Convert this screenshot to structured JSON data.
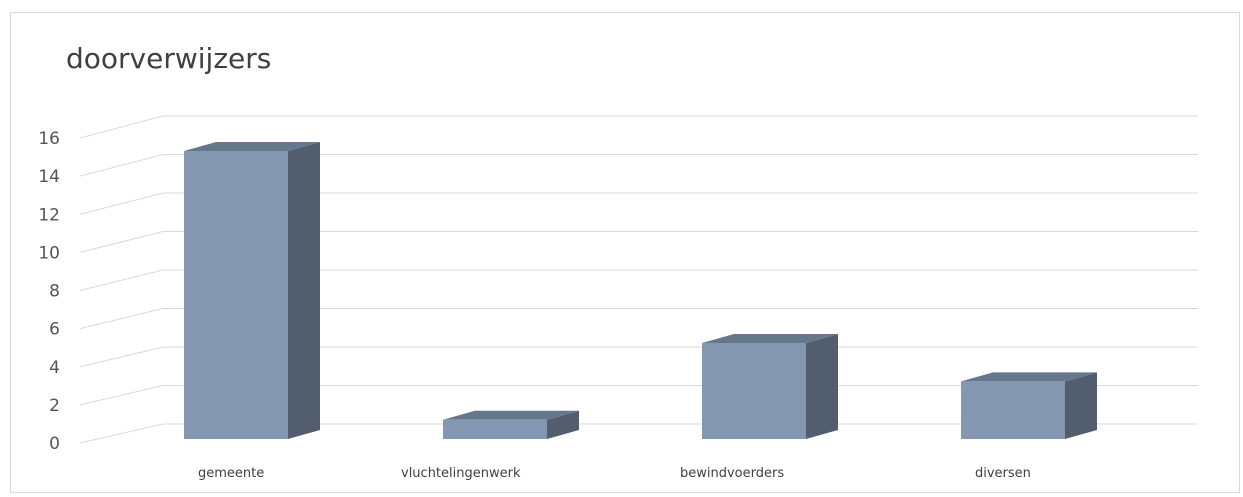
{
  "chart_data": {
    "type": "bar",
    "style": "3d-column",
    "title": "doorverwijzers",
    "categories": [
      "gemeente",
      "vluchtelingenwerk",
      "bewindvoerders",
      "diversen"
    ],
    "values": [
      15,
      1,
      5,
      3
    ],
    "ylim": [
      0,
      16
    ],
    "yticks": [
      0,
      2,
      4,
      6,
      8,
      10,
      12,
      14,
      16
    ],
    "xlabel": "",
    "ylabel": "",
    "grid": true,
    "legend": "none",
    "colors": {
      "bar_front": "#8497b0",
      "bar_side": "#525e6e",
      "bar_top": "#66778c",
      "grid": "#d9d9d9"
    }
  }
}
